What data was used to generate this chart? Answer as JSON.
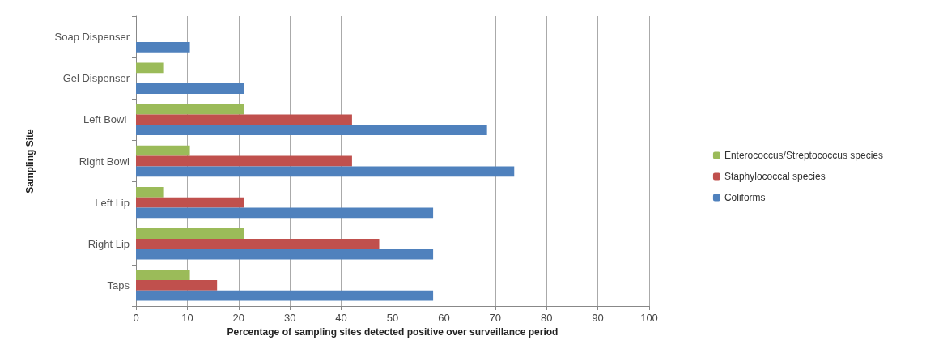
{
  "chart_data": {
    "type": "bar",
    "orientation": "horizontal",
    "xlabel": "Percentage of sampling sites detected positive over surveillance period",
    "ylabel": "Sampling Site",
    "categories": [
      "Soap Dispenser",
      "Gel Dispenser",
      "Left Bowl ",
      "Right Bowl",
      "Left Lip",
      "Right Lip",
      "Taps"
    ],
    "series": [
      {
        "name": "Enterococcus/Streptococcus species",
        "color": "#9bbb59",
        "values": [
          0,
          5.3,
          21.1,
          10.5,
          5.3,
          21.1,
          10.5
        ]
      },
      {
        "name": "Staphylococcal species",
        "color": "#c0504d",
        "values": [
          0,
          0,
          42.1,
          42.1,
          21.1,
          47.4,
          15.8
        ]
      },
      {
        "name": "Coliforms",
        "color": "#4f81bd",
        "values": [
          10.5,
          21.1,
          68.4,
          73.7,
          57.9,
          57.9,
          57.9
        ]
      }
    ],
    "xlim": [
      0,
      100
    ],
    "xticks": [
      0,
      10,
      20,
      30,
      40,
      50,
      60,
      70,
      80,
      90,
      100
    ],
    "grid": "x",
    "legend": "right"
  }
}
